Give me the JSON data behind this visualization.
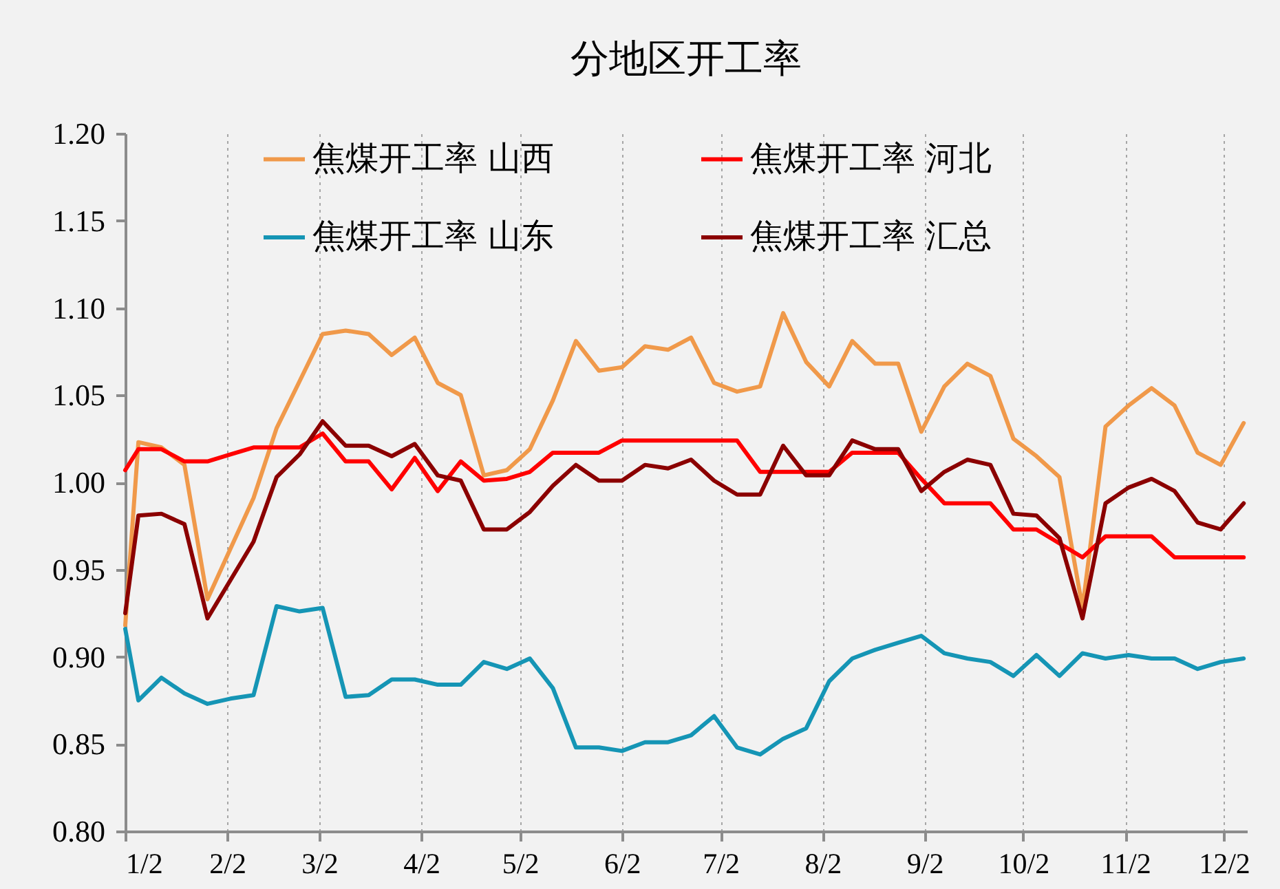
{
  "chart_data": {
    "type": "line",
    "title": "分地区开工率",
    "x": [
      "--01-02",
      "--01-06",
      "--01-13",
      "--01-20",
      "--01-27",
      "--02-03",
      "--02-10",
      "--02-17",
      "--02-24",
      "--03-03",
      "--03-10",
      "--03-17",
      "--03-24",
      "--03-31",
      "--04-07",
      "--04-14",
      "--04-21",
      "--04-28",
      "--05-05",
      "--05-12",
      "--05-19",
      "--05-26",
      "--06-02",
      "--06-09",
      "--06-16",
      "--06-23",
      "--06-30",
      "--07-07",
      "--07-14",
      "--07-21",
      "--07-28",
      "--08-04",
      "--08-11",
      "--08-18",
      "--08-25",
      "--09-01",
      "--09-08",
      "--09-15",
      "--09-22",
      "--09-29",
      "--10-06",
      "--10-13",
      "--10-20",
      "--10-27",
      "--11-03",
      "--11-10",
      "--11-17",
      "--11-24",
      "--12-01",
      "--12-08"
    ],
    "series": [
      {
        "name": "焦煤开工率 山西",
        "color": "#f0994a",
        "values": [
          0.918,
          1.023,
          1.02,
          1.01,
          0.933,
          0.962,
          0.991,
          1.031,
          1.058,
          1.085,
          1.087,
          1.085,
          1.073,
          1.083,
          1.057,
          1.05,
          1.004,
          1.007,
          1.019,
          1.047,
          1.081,
          1.064,
          1.066,
          1.078,
          1.076,
          1.083,
          1.057,
          1.052,
          1.055,
          1.097,
          1.069,
          1.055,
          1.081,
          1.068,
          1.068,
          1.029,
          1.055,
          1.068,
          1.061,
          1.025,
          1.015,
          1.003,
          0.928,
          1.032,
          1.044,
          1.054,
          1.044,
          1.017,
          1.01,
          1.034
        ]
      },
      {
        "name": "焦煤开工率 河北",
        "color": "#ff0000",
        "values": [
          1.007,
          1.019,
          1.019,
          1.012,
          1.012,
          1.016,
          1.02,
          1.02,
          1.02,
          1.028,
          1.012,
          1.012,
          0.996,
          1.014,
          0.995,
          1.012,
          1.001,
          1.002,
          1.006,
          1.017,
          1.017,
          1.017,
          1.024,
          1.024,
          1.024,
          1.024,
          1.024,
          1.024,
          1.006,
          1.006,
          1.006,
          1.006,
          1.017,
          1.017,
          1.017,
          1.002,
          0.988,
          0.988,
          0.988,
          0.973,
          0.973,
          0.965,
          0.957,
          0.969,
          0.969,
          0.969,
          0.957,
          0.957,
          0.957,
          0.957
        ]
      },
      {
        "name": "焦煤开工率 山东",
        "color": "#1595b5",
        "values": [
          0.916,
          0.875,
          0.888,
          0.879,
          0.873,
          0.876,
          0.878,
          0.929,
          0.926,
          0.928,
          0.877,
          0.878,
          0.887,
          0.887,
          0.884,
          0.884,
          0.897,
          0.893,
          0.899,
          0.882,
          0.848,
          0.848,
          0.846,
          0.851,
          0.851,
          0.855,
          0.866,
          0.848,
          0.844,
          0.853,
          0.859,
          0.886,
          0.899,
          0.904,
          0.908,
          0.912,
          0.902,
          0.899,
          0.897,
          0.889,
          0.901,
          0.889,
          0.902,
          0.899,
          0.901,
          0.899,
          0.899,
          0.893,
          0.897,
          0.899
        ]
      },
      {
        "name": "焦煤开工率 汇总",
        "color": "#8b0000",
        "values": [
          0.925,
          0.981,
          0.982,
          0.976,
          0.922,
          0.944,
          0.966,
          1.003,
          1.016,
          1.035,
          1.021,
          1.021,
          1.015,
          1.022,
          1.004,
          1.001,
          0.973,
          0.973,
          0.983,
          0.998,
          1.01,
          1.001,
          1.001,
          1.01,
          1.008,
          1.013,
          1.001,
          0.993,
          0.993,
          1.021,
          1.004,
          1.004,
          1.024,
          1.019,
          1.019,
          0.995,
          1.006,
          1.013,
          1.01,
          0.982,
          0.981,
          0.968,
          0.922,
          0.988,
          0.997,
          1.002,
          0.995,
          0.977,
          0.973,
          0.988
        ]
      }
    ],
    "xlim": [
      "--01-02",
      "--12-09"
    ],
    "xticks": [
      {
        "value": "--01-02",
        "label": "1/2"
      },
      {
        "value": "--02-02",
        "label": "2/2"
      },
      {
        "value": "--03-02",
        "label": "3/2"
      },
      {
        "value": "--04-02",
        "label": "4/2"
      },
      {
        "value": "--05-02",
        "label": "5/2"
      },
      {
        "value": "--06-02",
        "label": "6/2"
      },
      {
        "value": "--07-02",
        "label": "7/2"
      },
      {
        "value": "--08-02",
        "label": "8/2"
      },
      {
        "value": "--09-02",
        "label": "9/2"
      },
      {
        "value": "--10-02",
        "label": "10/2"
      },
      {
        "value": "--11-02",
        "label": "11/2"
      },
      {
        "value": "--12-02",
        "label": "12/2"
      }
    ],
    "ylim": [
      0.8,
      1.2
    ],
    "yticks": [
      {
        "value": 0.8,
        "label": "0.80"
      },
      {
        "value": 0.85,
        "label": "0.85"
      },
      {
        "value": 0.9,
        "label": "0.90"
      },
      {
        "value": 0.95,
        "label": "0.95"
      },
      {
        "value": 1.0,
        "label": "1.00"
      },
      {
        "value": 1.05,
        "label": "1.05"
      },
      {
        "value": 1.1,
        "label": "1.10"
      },
      {
        "value": 1.15,
        "label": "1.15"
      },
      {
        "value": 1.2,
        "label": "1.20"
      }
    ],
    "grid": "x",
    "legend": "top",
    "line_style": "solid"
  }
}
